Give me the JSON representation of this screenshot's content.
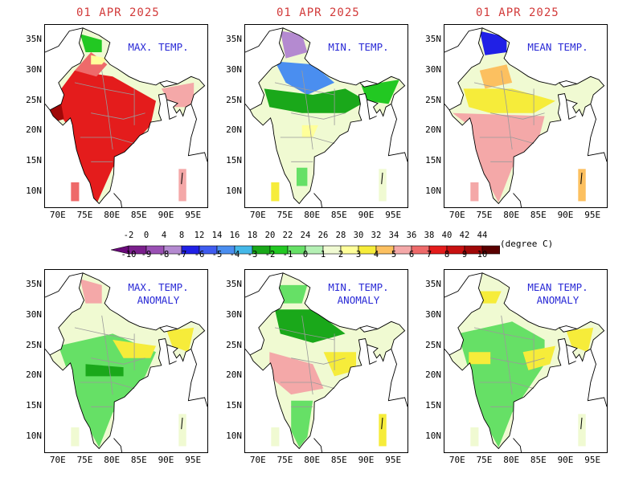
{
  "date": "01 APR 2025",
  "unit": "(degree C)",
  "panels": [
    {
      "title": "MAX. TEMP."
    },
    {
      "title": "MIN. TEMP."
    },
    {
      "title": "MEAN TEMP."
    },
    {
      "title": "MAX. TEMP.\nANOMALY"
    },
    {
      "title": "MIN. TEMP.\nANOMALY"
    },
    {
      "title": "MEAN TEMP.\nANOMALY"
    }
  ],
  "y_ticks": [
    "35N",
    "30N",
    "25N",
    "20N",
    "15N",
    "10N"
  ],
  "x_ticks": [
    "70E",
    "75E",
    "80E",
    "85E",
    "90E",
    "95E"
  ],
  "colorbar": {
    "temperature_labels": [
      "-2",
      "0",
      "4",
      "8",
      "12",
      "14",
      "16",
      "18",
      "20",
      "22",
      "24",
      "26",
      "28",
      "30",
      "32",
      "34",
      "36",
      "38",
      "40",
      "42",
      "44"
    ],
    "anomaly_labels": [
      "-10",
      "-9",
      "-8",
      "-7",
      "-6",
      "-5",
      "-4",
      "-3",
      "-2",
      "-1",
      "0",
      "1",
      "2",
      "3",
      "4",
      "5",
      "6",
      "7",
      "8",
      "9",
      "10"
    ],
    "colors": [
      "#7a1f8c",
      "#9a50b4",
      "#b48ad0",
      "#2020e6",
      "#3f5cf0",
      "#4a8ef0",
      "#44b8e8",
      "#1aa81a",
      "#22c822",
      "#66e066",
      "#b4f0b4",
      "#f0fad2",
      "#ffff9a",
      "#f6ec3a",
      "#fcc060",
      "#f4a8a8",
      "#ee6a6a",
      "#e41c1c",
      "#c81010",
      "#a00808",
      "#5a0000"
    ],
    "under_color": "#6a0a7a",
    "over_color": "#999999"
  }
}
